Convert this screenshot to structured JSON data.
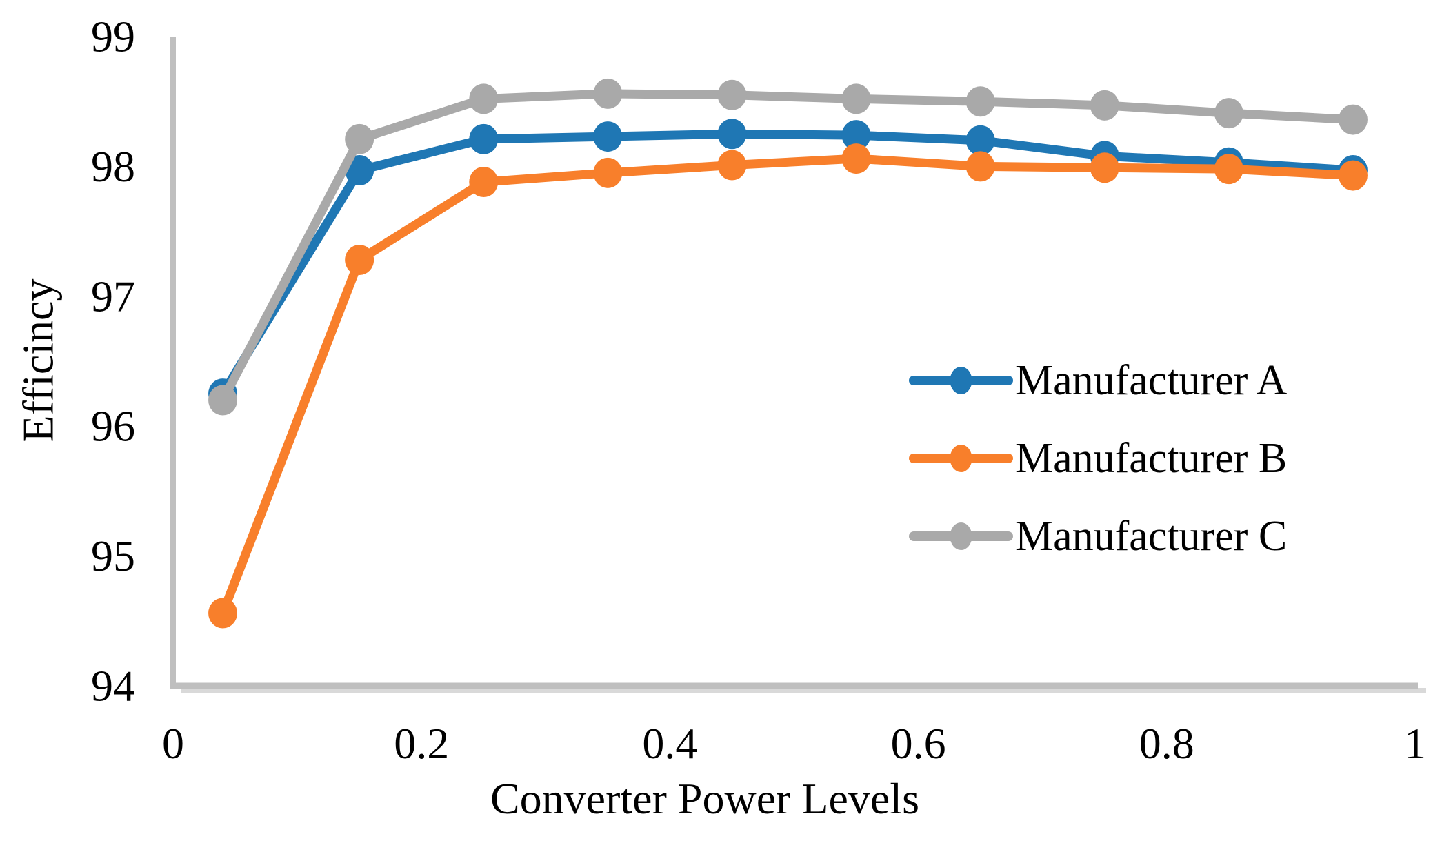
{
  "chart_data": {
    "type": "line",
    "title": "",
    "xlabel": "Converter Power Levels",
    "ylabel": "Efficincy",
    "xlim": [
      0,
      1
    ],
    "ylim": [
      94,
      99
    ],
    "x_ticks": [
      0,
      0.2,
      0.4,
      0.6,
      0.8,
      1
    ],
    "x_tick_labels": [
      "0",
      "0.2",
      "0.4",
      "0.6",
      "0.8",
      "1"
    ],
    "y_ticks": [
      94,
      95,
      96,
      97,
      98,
      99
    ],
    "y_tick_labels": [
      "94",
      "95",
      "96",
      "97",
      "98",
      "99"
    ],
    "grid": "off",
    "legend_position": "center-right",
    "background": "#FFFFFF",
    "axis_color": "#BFBFBF",
    "axis_shadow_color": "#D9D9D9",
    "x": [
      0.04,
      0.15,
      0.25,
      0.35,
      0.45,
      0.55,
      0.65,
      0.75,
      0.85,
      0.95
    ],
    "series": [
      {
        "name": "Manufacturer A",
        "color": "#1F77B4",
        "marker": "circle",
        "values": [
          96.25,
          97.97,
          98.21,
          98.23,
          98.25,
          98.24,
          98.2,
          98.08,
          98.03,
          97.97
        ]
      },
      {
        "name": "Manufacturer B",
        "color": "#F87F2B",
        "marker": "circle",
        "values": [
          94.56,
          97.28,
          97.88,
          97.95,
          98.01,
          98.06,
          98.0,
          97.99,
          97.98,
          97.93
        ]
      },
      {
        "name": "Manufacturer C",
        "color": "#A9A9A9",
        "marker": "circle",
        "values": [
          96.2,
          98.21,
          98.52,
          98.56,
          98.55,
          98.52,
          98.5,
          98.47,
          98.41,
          98.36
        ]
      }
    ]
  }
}
